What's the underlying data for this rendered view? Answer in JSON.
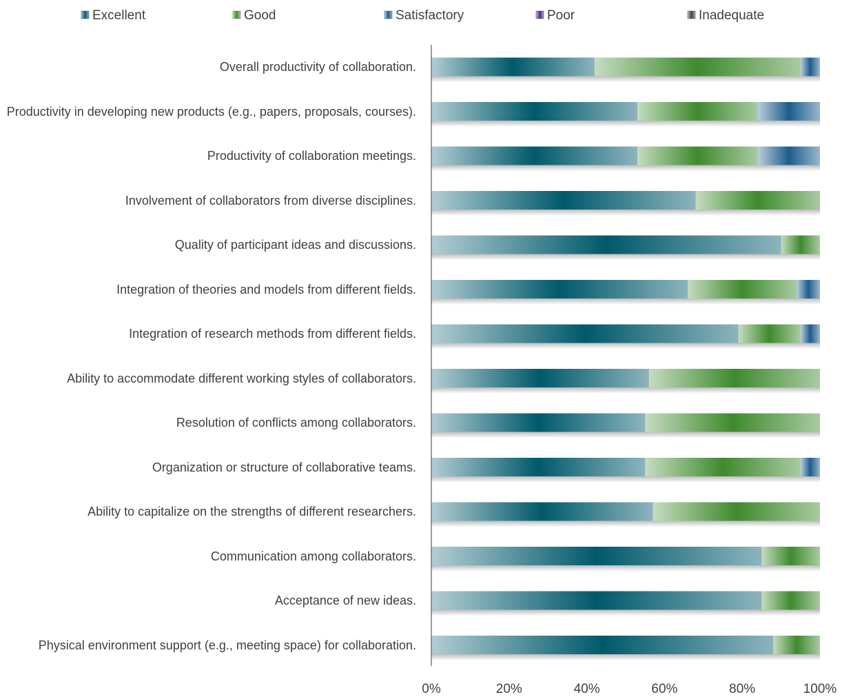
{
  "chart_data": {
    "type": "stacked_bar_horizontal",
    "categories": [
      "Overall productivity of collaboration.",
      "Productivity in developing new products (e.g., papers, proposals, courses).",
      "Productivity of collaboration meetings.",
      "Involvement of collaborators from diverse disciplines.",
      "Quality of participant ideas and discussions.",
      "Integration of theories and models from different fields.",
      "Integration of research methods from different fields.",
      "Ability to accommodate different working styles of collaborators.",
      "Resolution of conflicts among collaborators.",
      "Organization or structure of collaborative teams.",
      "Ability to capitalize on the strengths of different researchers.",
      "Communication among collaborators.",
      "Acceptance of new ideas.",
      "Physical environment support (e.g., meeting space) for collaboration."
    ],
    "series": [
      {
        "name": "Excellent",
        "color": "#00596b",
        "values": [
          42,
          53,
          53,
          68,
          90,
          66,
          79,
          56,
          55,
          55,
          57,
          85,
          85,
          88
        ]
      },
      {
        "name": "Good",
        "color": "#3f8a2e",
        "values": [
          53,
          31,
          31,
          32,
          10,
          28,
          16,
          44,
          45,
          40,
          43,
          15,
          15,
          12
        ]
      },
      {
        "name": "Satisfactory",
        "color": "#1c5d8c",
        "values": [
          5,
          16,
          16,
          0,
          0,
          6,
          5,
          0,
          0,
          5,
          0,
          0,
          0,
          0
        ]
      },
      {
        "name": "Poor",
        "color": "#4b2a7b",
        "values": [
          0,
          0,
          0,
          0,
          0,
          0,
          0,
          0,
          0,
          0,
          0,
          0,
          0,
          0
        ]
      },
      {
        "name": "Inadequate",
        "color": "#404040",
        "values": [
          0,
          0,
          0,
          0,
          0,
          0,
          0,
          0,
          0,
          0,
          0,
          0,
          0,
          0
        ]
      }
    ],
    "xlim": [
      0,
      100
    ],
    "xticks": [
      {
        "value": 0,
        "label": "0%"
      },
      {
        "value": 20,
        "label": "20%"
      },
      {
        "value": 40,
        "label": "40%"
      },
      {
        "value": 60,
        "label": "60%"
      },
      {
        "value": 80,
        "label": "80%"
      },
      {
        "value": 100,
        "label": "100%"
      }
    ],
    "legend": "top"
  }
}
